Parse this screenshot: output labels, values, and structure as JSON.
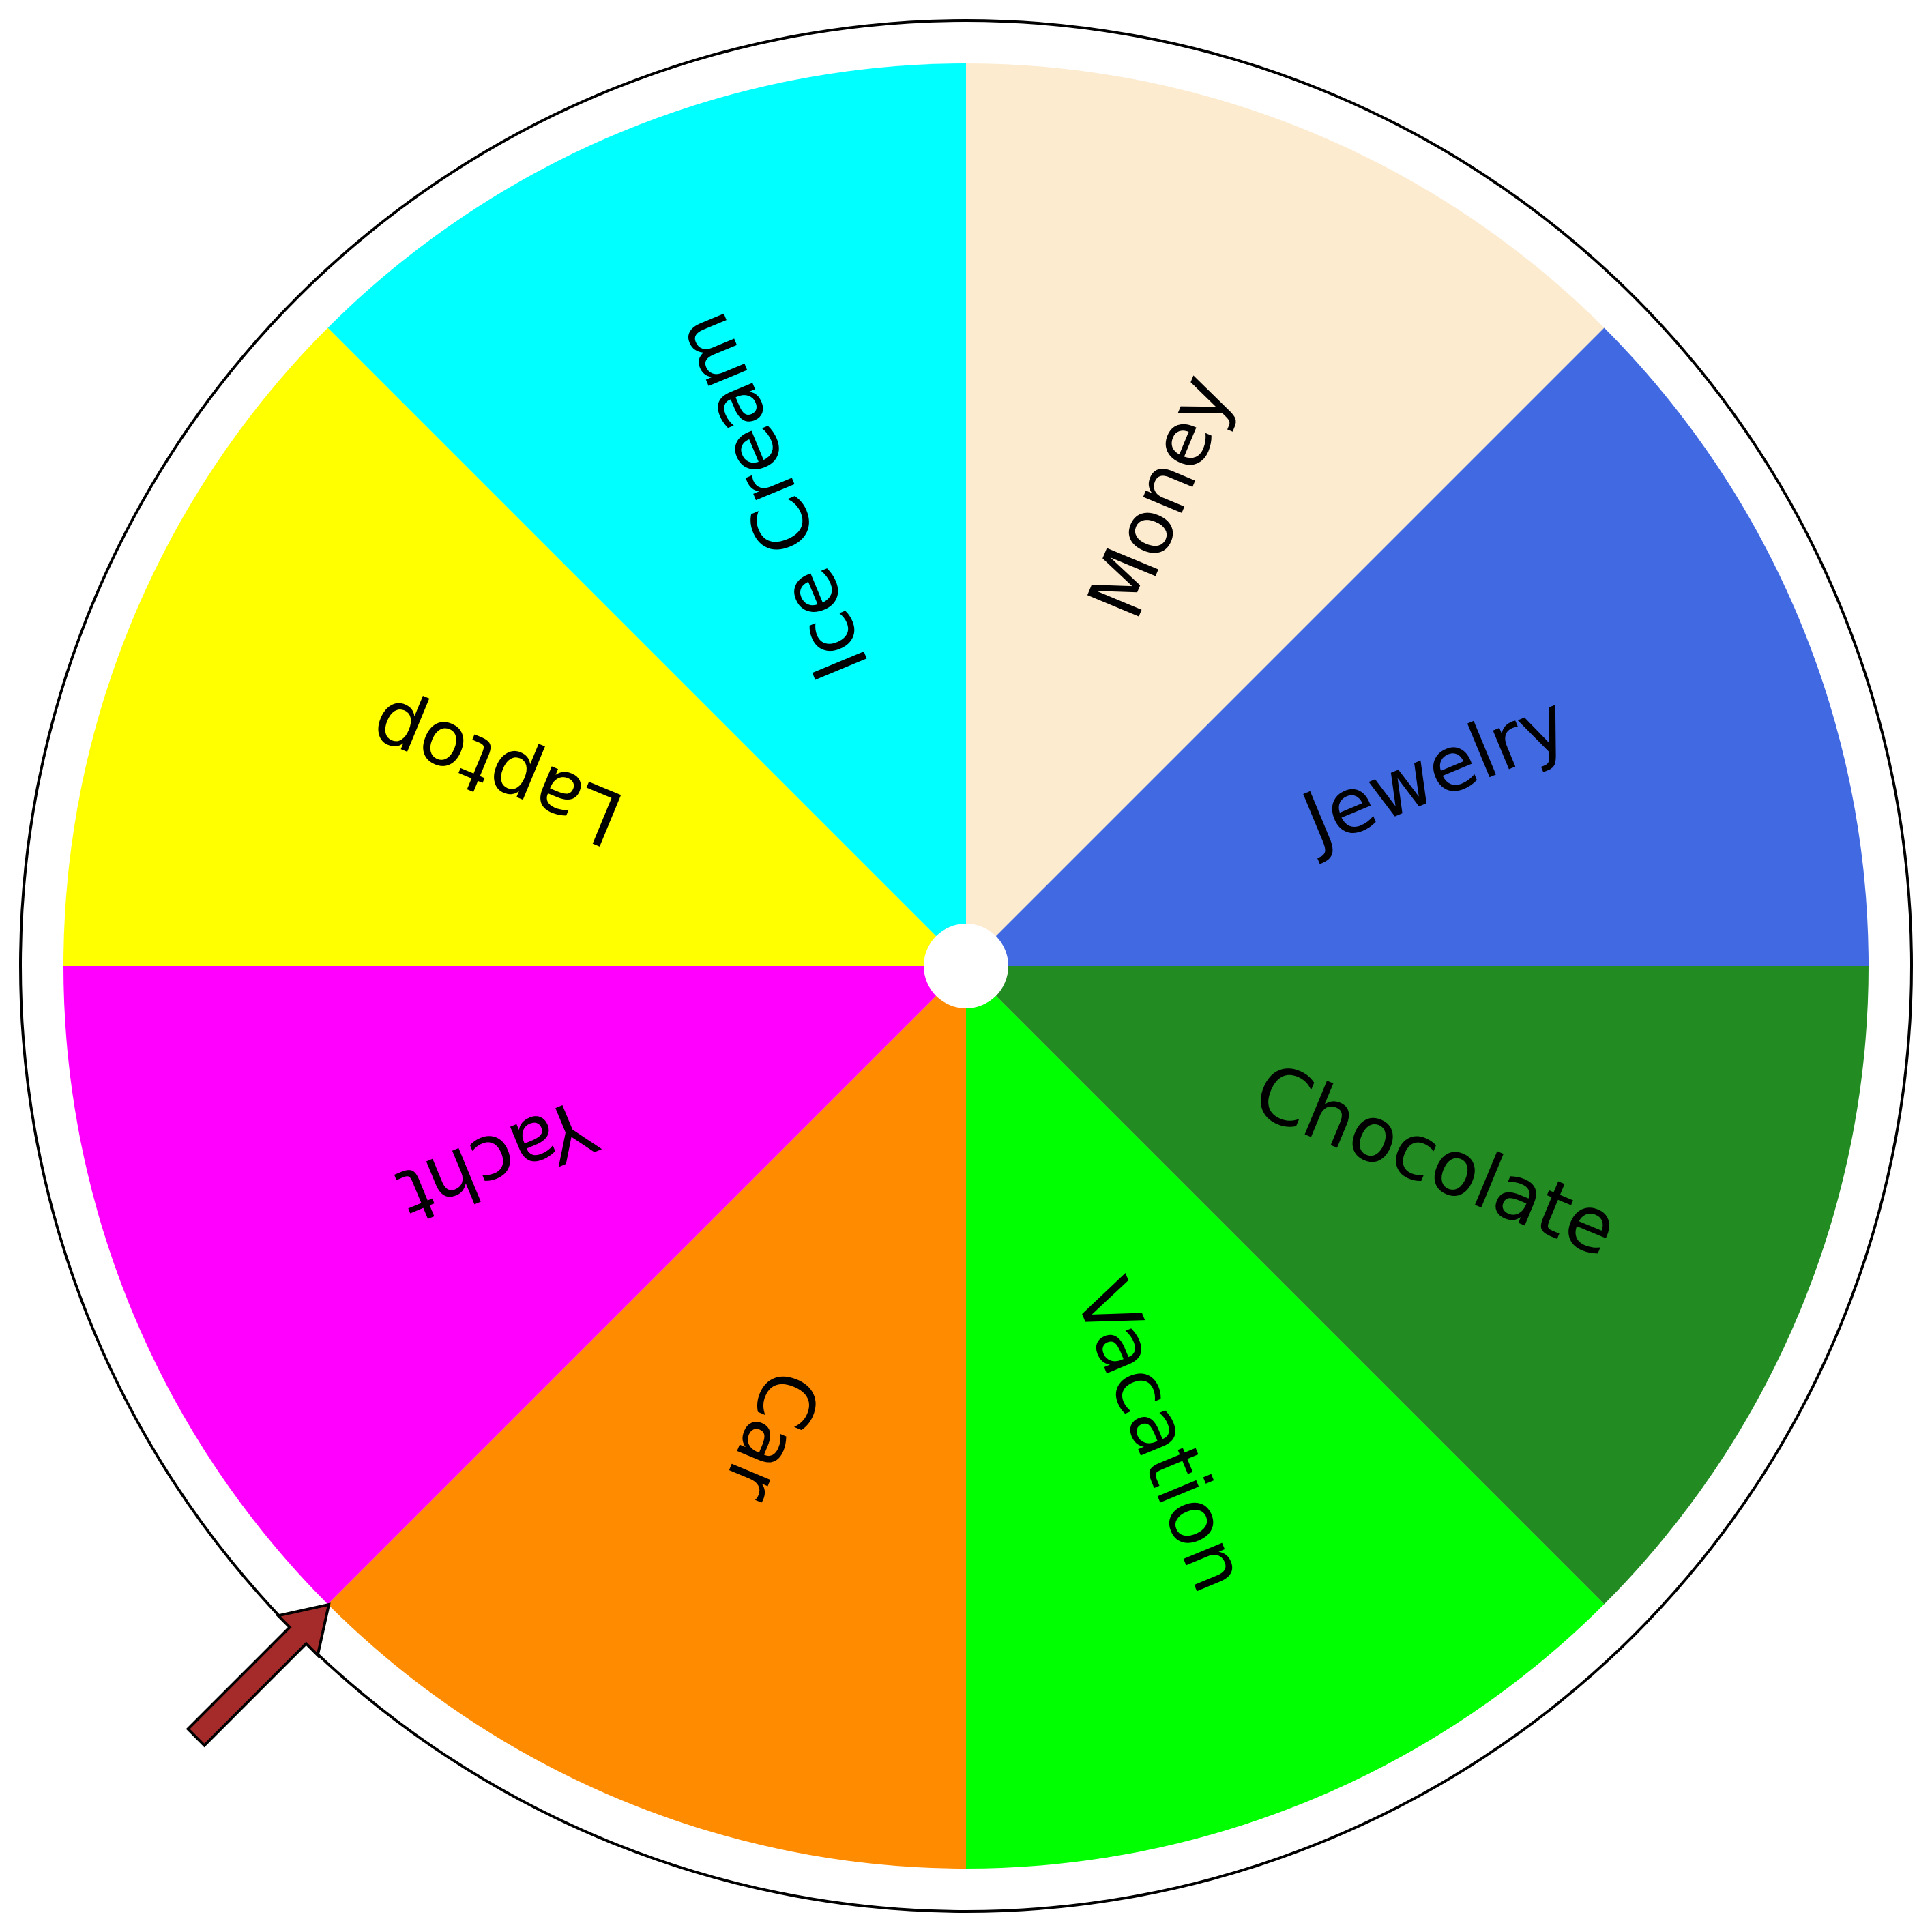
{
  "wheel": {
    "outer_ring_color": "#ffffff",
    "outer_ring_stroke": "#000000",
    "hub_color": "#ffffff",
    "slices": [
      {
        "label": "Money",
        "color": "#FDEBD0"
      },
      {
        "label": "Jewelry",
        "color": "#4169E1"
      },
      {
        "label": "Chocolate",
        "color": "#228B22"
      },
      {
        "label": "Vacation",
        "color": "#00FF00"
      },
      {
        "label": "Car",
        "color": "#FF8C00"
      },
      {
        "label": "Yacht",
        "color": "#FF00FF"
      },
      {
        "label": "Laptop",
        "color": "#FFFF00"
      },
      {
        "label": "Ice Cream",
        "color": "#00FFFF"
      }
    ]
  },
  "pointer": {
    "icon": "arrow-pointer-icon",
    "color": "#A52A2A",
    "outline": "#000000"
  }
}
